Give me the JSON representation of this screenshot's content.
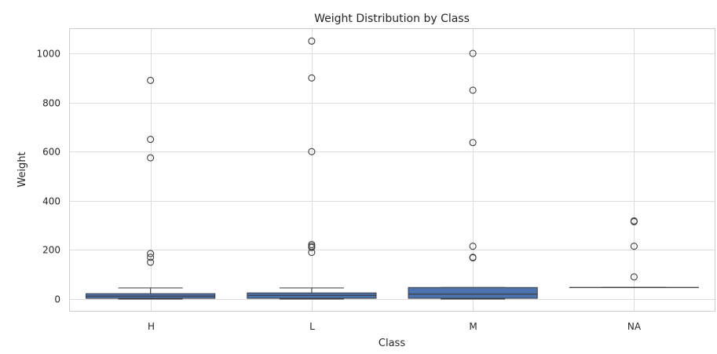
{
  "chart_data": {
    "type": "box",
    "title": "Weight Distribution by Class",
    "xlabel": "Class",
    "ylabel": "Weight",
    "ylim": [
      -50,
      1100
    ],
    "yticks": [
      0,
      200,
      400,
      600,
      800,
      1000
    ],
    "grid": true,
    "box_color": "#4c72b0",
    "categories": [
      "H",
      "L",
      "M",
      "NA"
    ],
    "boxes": [
      {
        "category": "H",
        "whisker_low": 0,
        "q1": 3,
        "median": 12,
        "q3": 22,
        "whisker_high": 45,
        "outliers": [
          890,
          650,
          575,
          185,
          170,
          150
        ]
      },
      {
        "category": "L",
        "whisker_low": 0,
        "q1": 3,
        "median": 15,
        "q3": 25,
        "whisker_high": 45,
        "outliers": [
          1050,
          900,
          600,
          222,
          215,
          210,
          190
        ]
      },
      {
        "category": "M",
        "whisker_low": 0,
        "q1": 3,
        "median": 20,
        "q3": 47,
        "whisker_high": 47,
        "outliers": [
          1000,
          850,
          637,
          215,
          170,
          168
        ]
      },
      {
        "category": "NA",
        "whisker_low": 47,
        "q1": 47,
        "median": 47,
        "q3": 47,
        "whisker_high": 47,
        "outliers": [
          318,
          315,
          215,
          90
        ]
      }
    ]
  }
}
